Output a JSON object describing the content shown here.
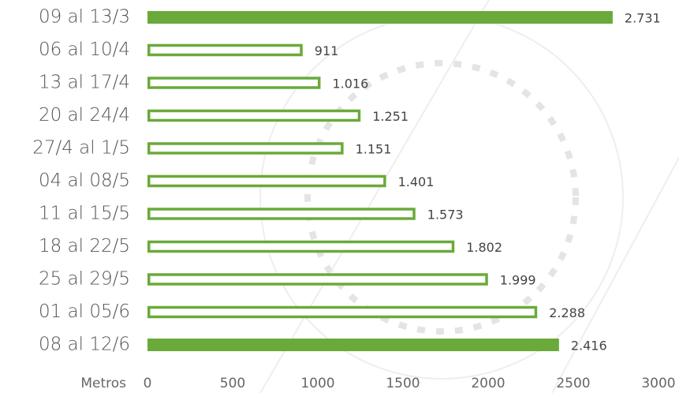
{
  "chart_data": {
    "type": "bar",
    "orientation": "horizontal",
    "categories": [
      "09 al 13/3",
      "06 al 10/4",
      "13 al 17/4",
      "20 al 24/4",
      "27/4 al 1/5",
      "04 al 08/5",
      "11 al 15/5",
      "18 al 22/5",
      "25 al 29/5",
      "01 al 05/6",
      "08 al 12/6"
    ],
    "values": [
      2731,
      911,
      1016,
      1251,
      1151,
      1401,
      1573,
      1802,
      1999,
      2288,
      2416
    ],
    "value_labels": [
      "2.731",
      "911",
      "1.016",
      "1.251",
      "1.151",
      "1.401",
      "1.573",
      "1.802",
      "1.999",
      "2.288",
      "2.416"
    ],
    "color": "#6aaa3a",
    "bar_fills": [
      "#6aaa3a",
      "#ffffff",
      "#ffffff",
      "#ffffff",
      "#ffffff",
      "#ffffff",
      "#ffffff",
      "#ffffff",
      "#ffffff",
      "#ffffff",
      "#6aaa3a"
    ],
    "xlabel": "Metros",
    "xlim": [
      0,
      3000
    ],
    "xticks": [
      0,
      500,
      1000,
      1500,
      2000,
      2500,
      3000
    ]
  }
}
